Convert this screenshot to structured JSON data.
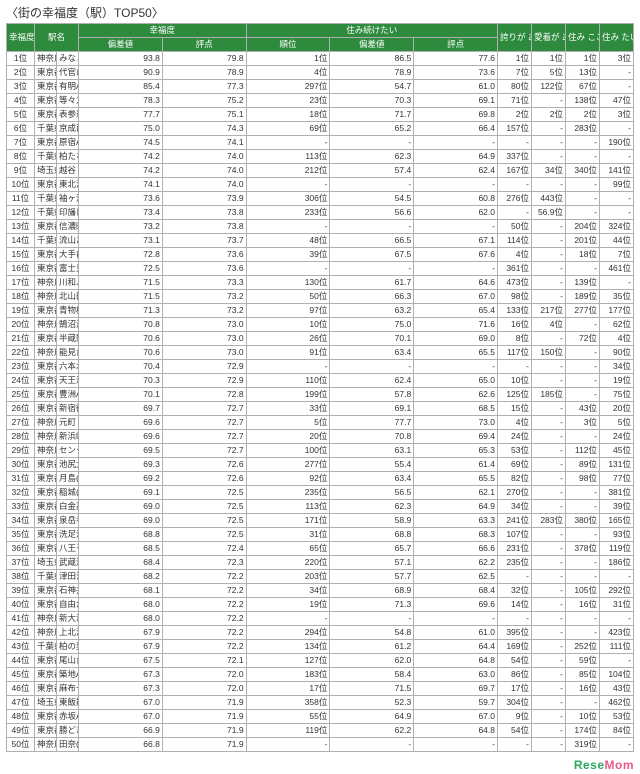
{
  "title": "〈街の幸福度（駅）TOP50〉",
  "headers": {
    "rank": "幸福度\n順位",
    "station": "駅名",
    "happy_group": "幸福度",
    "deviation": "偏差値",
    "points": "評点",
    "livecont_group": "住み続けたい",
    "order": "順位",
    "pride": "誇りが\nある",
    "attach": "愛着が\nある",
    "livefeel": "住み\nここち",
    "want": "住み\nたい"
  },
  "logo": {
    "left": "Rese",
    "right": "Mom"
  },
  "rows": [
    {
      "rank": "1位",
      "pref": "神奈川県",
      "sta": "みなとみらい(みなとみらい線)",
      "dev": "93.8",
      "pts": "79.8",
      "ord": "1位",
      "dev2": "86.5",
      "pts2": "77.6",
      "pride": "1位",
      "att": "1位",
      "live": "1位",
      "want": "3位"
    },
    {
      "rank": "2位",
      "pref": "東京都",
      "sta": "代官山(東急東横線)",
      "dev": "90.9",
      "pts": "78.9",
      "ord": "4位",
      "dev2": "78.9",
      "pts2": "73.6",
      "pride": "7位",
      "att": "5位",
      "live": "13位",
      "want": "-"
    },
    {
      "rank": "3位",
      "pref": "東京都",
      "sta": "有明A(東京ゆりかもめ)",
      "dev": "85.4",
      "pts": "77.3",
      "ord": "297位",
      "dev2": "54.7",
      "pts2": "61.0",
      "pride": "80位",
      "att": "122位",
      "live": "67位",
      "want": "-"
    },
    {
      "rank": "4位",
      "pref": "東京都",
      "sta": "等々力(東急大井町線)",
      "dev": "78.3",
      "pts": "75.2",
      "ord": "23位",
      "dev2": "70.3",
      "pts2": "69.1",
      "pride": "71位",
      "att": "-",
      "live": "138位",
      "want": "47位"
    },
    {
      "rank": "5位",
      "pref": "東京都",
      "sta": "表参道(東京メトロ銀座線)",
      "dev": "77.7",
      "pts": "75.1",
      "ord": "18位",
      "dev2": "71.7",
      "pts2": "69.8",
      "pride": "2位",
      "att": "2位",
      "live": "2位",
      "want": "3位"
    },
    {
      "rank": "6位",
      "pref": "千葉県",
      "sta": "京成西船(京成千原線)",
      "dev": "75.0",
      "pts": "74.3",
      "ord": "69位",
      "dev2": "65.2",
      "pts2": "66.4",
      "pride": "157位",
      "att": "-",
      "live": "283位",
      "want": "-"
    },
    {
      "rank": "7位",
      "pref": "東京都",
      "sta": "原宿A(JR山手線)",
      "dev": "74.5",
      "pts": "74.1",
      "ord": "-",
      "dev2": "-",
      "pts2": "-",
      "pride": "-",
      "att": "-",
      "live": "-",
      "want": "190位"
    },
    {
      "rank": "8位",
      "pref": "千葉県",
      "sta": "柏たなか(つくばエクスプレス)",
      "dev": "74.2",
      "pts": "74.0",
      "ord": "113位",
      "dev2": "62.3",
      "pts2": "64.9",
      "pride": "337位",
      "att": "-",
      "live": "-",
      "want": "-"
    },
    {
      "rank": "9位",
      "pref": "埼玉県",
      "sta": "越谷レイクタウン(JR武蔵野線)",
      "dev": "74.2",
      "pts": "74.0",
      "ord": "212位",
      "dev2": "57.4",
      "pts2": "62.4",
      "pride": "167位",
      "att": "34位",
      "live": "340位",
      "want": "141位"
    },
    {
      "rank": "10位",
      "pref": "東京都",
      "sta": "東北沢(小田急線)",
      "dev": "74.1",
      "pts": "74.0",
      "ord": "-",
      "dev2": "-",
      "pts2": "-",
      "pride": "-",
      "att": "-",
      "live": "-",
      "want": "99位"
    },
    {
      "rank": "11位",
      "pref": "千葉県",
      "sta": "袖ヶ浦(JR内房線)",
      "dev": "73.6",
      "pts": "73.9",
      "ord": "306位",
      "dev2": "54.5",
      "pts2": "60.8",
      "pride": "276位",
      "att": "443位",
      "live": "-",
      "want": "-"
    },
    {
      "rank": "12位",
      "pref": "千葉県",
      "sta": "印旛日本医大(北総・成田スカイアクセス)",
      "dev": "73.4",
      "pts": "73.8",
      "ord": "233位",
      "dev2": "56.6",
      "pts2": "62.0",
      "pride": "-",
      "att": "56.9位",
      "live": "-",
      "want": "-"
    },
    {
      "rank": "13位",
      "pref": "東京都",
      "sta": "信濃町(JR中央線)",
      "dev": "73.2",
      "pts": "73.8",
      "ord": "-",
      "dev2": "-",
      "pts2": "-",
      "pride": "50位",
      "att": "-",
      "live": "204位",
      "want": "324位"
    },
    {
      "rank": "14位",
      "pref": "千葉県",
      "sta": "流山おおたかの森(つくばエクスプレス)",
      "dev": "73.1",
      "pts": "73.7",
      "ord": "48位",
      "dev2": "66.5",
      "pts2": "67.1",
      "pride": "114位",
      "att": "-",
      "live": "201位",
      "want": "44位"
    },
    {
      "rank": "15位",
      "pref": "東京都",
      "sta": "大手前(東京メトロ南北線)",
      "dev": "72.8",
      "pts": "73.6",
      "ord": "39位",
      "dev2": "67.5",
      "pts2": "67.6",
      "pride": "4位",
      "att": "-",
      "live": "18位",
      "want": "7位"
    },
    {
      "rank": "16位",
      "pref": "東京都",
      "sta": "富士見ヶ丘(京王井の頭線)",
      "dev": "72.5",
      "pts": "73.6",
      "ord": "-",
      "dev2": "-",
      "pts2": "-",
      "pride": "361位",
      "att": "-",
      "live": "-",
      "want": "461位"
    },
    {
      "rank": "17位",
      "pref": "神奈川県",
      "sta": "川和ふれあいの丘(グリーンライン)",
      "dev": "71.5",
      "pts": "73.3",
      "ord": "130位",
      "dev2": "61.7",
      "pts2": "64.6",
      "pride": "473位",
      "att": "-",
      "live": "139位",
      "want": "-"
    },
    {
      "rank": "18位",
      "pref": "神奈川県",
      "sta": "北山田(グリーンライン)",
      "dev": "71.5",
      "pts": "73.2",
      "ord": "50位",
      "dev2": "66.3",
      "pts2": "67.0",
      "pride": "98位",
      "att": "-",
      "live": "189位",
      "want": "35位"
    },
    {
      "rank": "19位",
      "pref": "東京都",
      "sta": "青物横丁(京浜急行線)",
      "dev": "71.3",
      "pts": "73.2",
      "ord": "97位",
      "dev2": "63.2",
      "pts2": "65.4",
      "pride": "133位",
      "att": "217位",
      "live": "277位",
      "want": "177位"
    },
    {
      "rank": "20位",
      "pref": "神奈川県",
      "sta": "鵠沼海岸(小田急江ノ島線)",
      "dev": "70.8",
      "pts": "73.0",
      "ord": "10位",
      "dev2": "75.0",
      "pts2": "71.6",
      "pride": "16位",
      "att": "4位",
      "live": "-",
      "want": "62位"
    },
    {
      "rank": "21位",
      "pref": "東京都",
      "sta": "半蔵門・麹町A(東京メトロ半蔵門線)",
      "dev": "70.6",
      "pts": "73.0",
      "ord": "26位",
      "dev2": "70.1",
      "pts2": "69.0",
      "pride": "8位",
      "att": "-",
      "live": "72位",
      "want": "4位"
    },
    {
      "rank": "22位",
      "pref": "神奈川県",
      "sta": "能見台(京急本線)",
      "dev": "70.6",
      "pts": "73.0",
      "ord": "91位",
      "dev2": "63.4",
      "pts2": "65.5",
      "pride": "117位",
      "att": "150位",
      "live": "-",
      "want": "90位"
    },
    {
      "rank": "23位",
      "pref": "東京都",
      "sta": "六本木一丁目(東京メトロ南北線)",
      "dev": "70.4",
      "pts": "72.9",
      "ord": "-",
      "dev2": "-",
      "pts2": "-",
      "pride": "-",
      "att": "-",
      "live": "-",
      "want": "34位"
    },
    {
      "rank": "24位",
      "pref": "東京都",
      "sta": "天王洲アイル(りんかい線)",
      "dev": "70.3",
      "pts": "72.9",
      "ord": "110位",
      "dev2": "62.4",
      "pts2": "65.0",
      "pride": "10位",
      "att": "-",
      "live": "-",
      "want": "19位"
    },
    {
      "rank": "25位",
      "pref": "東京都",
      "sta": "豊洲A(東京メトロ有楽町線)",
      "dev": "70.1",
      "pts": "72.8",
      "ord": "199位",
      "dev2": "57.8",
      "pts2": "62.6",
      "pride": "125位",
      "att": "185位",
      "live": "-",
      "want": "75位"
    },
    {
      "rank": "26位",
      "pref": "東京都",
      "sta": "新宿御苑前(東京メトロ丸ノ内線)",
      "dev": "69.7",
      "pts": "72.7",
      "ord": "33位",
      "dev2": "69.1",
      "pts2": "68.5",
      "pride": "15位",
      "att": "-",
      "live": "43位",
      "want": "20位"
    },
    {
      "rank": "27位",
      "pref": "神奈川県",
      "sta": "元町・中華街(みなとみらい線)",
      "dev": "69.6",
      "pts": "72.7",
      "ord": "5位",
      "dev2": "77.7",
      "pts2": "73.0",
      "pride": "4位",
      "att": "-",
      "live": "3位",
      "want": "5位"
    },
    {
      "rank": "28位",
      "pref": "神奈川県",
      "sta": "新浜崎(JR京葉線)",
      "dev": "69.6",
      "pts": "72.7",
      "ord": "20位",
      "dev2": "70.8",
      "pts2": "69.4",
      "pride": "24位",
      "att": "-",
      "live": "-",
      "want": "24位"
    },
    {
      "rank": "29位",
      "pref": "神奈川県",
      "sta": "センター南(ブルーライン)",
      "dev": "69.5",
      "pts": "72.7",
      "ord": "100位",
      "dev2": "63.1",
      "pts2": "65.3",
      "pride": "53位",
      "att": "-",
      "live": "112位",
      "want": "45位"
    },
    {
      "rank": "30位",
      "pref": "東京都",
      "sta": "池尻大橋(東急田園都市線)",
      "dev": "69.3",
      "pts": "72.6",
      "ord": "277位",
      "dev2": "55.4",
      "pts2": "61.4",
      "pride": "69位",
      "att": "-",
      "live": "89位",
      "want": "131位"
    },
    {
      "rank": "31位",
      "pref": "東京都",
      "sta": "月島(東京メトロ有楽町線)",
      "dev": "69.2",
      "pts": "72.6",
      "ord": "92位",
      "dev2": "63.4",
      "pts2": "65.5",
      "pride": "82位",
      "att": "-",
      "live": "98位",
      "want": "77位"
    },
    {
      "rank": "32位",
      "pref": "東京都",
      "sta": "稲城(京王相模原線)",
      "dev": "69.1",
      "pts": "72.5",
      "ord": "235位",
      "dev2": "56.5",
      "pts2": "62.1",
      "pride": "270位",
      "att": "-",
      "live": "-",
      "want": "381位"
    },
    {
      "rank": "33位",
      "pref": "東京都",
      "sta": "白金高輪(東京メトロ南北線)",
      "dev": "69.0",
      "pts": "72.5",
      "ord": "113位",
      "dev2": "62.3",
      "pts2": "64.9",
      "pride": "34位",
      "att": "-",
      "live": "-",
      "want": "39位"
    },
    {
      "rank": "34位",
      "pref": "東京都",
      "sta": "泉岳寺(都営浅草・京急浦賀線)",
      "dev": "69.0",
      "pts": "72.5",
      "ord": "171位",
      "dev2": "58.9",
      "pts2": "63.3",
      "pride": "241位",
      "att": "283位",
      "live": "380位",
      "want": "165位"
    },
    {
      "rank": "35位",
      "pref": "東京都",
      "sta": "洗足池(東急池上線)",
      "dev": "68.8",
      "pts": "72.5",
      "ord": "31位",
      "dev2": "68.8",
      "pts2": "68.3",
      "pride": "107位",
      "att": "-",
      "live": "-",
      "want": "93位"
    },
    {
      "rank": "36位",
      "pref": "東京都",
      "sta": "八王子みなみ野(JR横浜線)",
      "dev": "68.5",
      "pts": "72.4",
      "ord": "65位",
      "dev2": "65.7",
      "pts2": "66.6",
      "pride": "231位",
      "att": "-",
      "live": "378位",
      "want": "119位"
    },
    {
      "rank": "37位",
      "pref": "埼玉県",
      "sta": "武蔵浦和(JR武蔵野線)",
      "dev": "68.4",
      "pts": "72.3",
      "ord": "220位",
      "dev2": "57.1",
      "pts2": "62.2",
      "pride": "235位",
      "att": "-",
      "live": "-",
      "want": "186位"
    },
    {
      "rank": "38位",
      "pref": "千葉県",
      "sta": "津田沼(JR京葉線)",
      "dev": "68.2",
      "pts": "72.2",
      "ord": "203位",
      "dev2": "57.7",
      "pts2": "62.5",
      "pride": "-",
      "att": "-",
      "live": "-",
      "want": "-"
    },
    {
      "rank": "39位",
      "pref": "東京都",
      "sta": "石神井公園(西武池袋線)",
      "dev": "68.1",
      "pts": "72.2",
      "ord": "34位",
      "dev2": "68.9",
      "pts2": "68.4",
      "pride": "32位",
      "att": "-",
      "live": "105位",
      "want": "292位"
    },
    {
      "rank": "40位",
      "pref": "東京都",
      "sta": "自由が丘(東急東横線)",
      "dev": "68.0",
      "pts": "72.2",
      "ord": "19位",
      "dev2": "71.3",
      "pts2": "69.6",
      "pride": "14位",
      "att": "-",
      "live": "16位",
      "want": "31位"
    },
    {
      "rank": "41位",
      "pref": "神奈川県",
      "sta": "新大津(京急久里浜線)",
      "dev": "68.0",
      "pts": "72.2",
      "ord": "-",
      "dev2": "-",
      "pts2": "-",
      "pride": "-",
      "att": "-",
      "live": "-",
      "want": "-"
    },
    {
      "rank": "42位",
      "pref": "神奈川県",
      "sta": "上北沢(京王線)",
      "dev": "67.9",
      "pts": "72.2",
      "ord": "294位",
      "dev2": "54.8",
      "pts2": "61.0",
      "pride": "395位",
      "att": "-",
      "live": "-",
      "want": "423位"
    },
    {
      "rank": "43位",
      "pref": "千葉県",
      "sta": "柏の葉キャンパス(つくばエクスプレス)",
      "dev": "67.9",
      "pts": "72.2",
      "ord": "134位",
      "dev2": "61.2",
      "pts2": "64.4",
      "pride": "169位",
      "att": "-",
      "live": "252位",
      "want": "111位"
    },
    {
      "rank": "44位",
      "pref": "東京都",
      "sta": "尾山台(東急大井町線)",
      "dev": "67.5",
      "pts": "72.1",
      "ord": "127位",
      "dev2": "62.0",
      "pts2": "64.8",
      "pride": "54位",
      "att": "-",
      "live": "59位",
      "want": "-"
    },
    {
      "rank": "45位",
      "pref": "東京都",
      "sta": "築地A(東京メトロ日比谷線)",
      "dev": "67.3",
      "pts": "72.0",
      "ord": "183位",
      "dev2": "58.4",
      "pts2": "63.0",
      "pride": "86位",
      "att": "-",
      "live": "85位",
      "want": "104位"
    },
    {
      "rank": "46位",
      "pref": "東京都",
      "sta": "麻布十番(東京メトロ南北線)",
      "dev": "67.3",
      "pts": "72.0",
      "ord": "17位",
      "dev2": "71.5",
      "pts2": "69.7",
      "pride": "17位",
      "att": "-",
      "live": "16位",
      "want": "43位"
    },
    {
      "rank": "47位",
      "pref": "埼玉県",
      "sta": "東飯能(JR八高線)",
      "dev": "67.0",
      "pts": "71.9",
      "ord": "358位",
      "dev2": "52.3",
      "pts2": "59.7",
      "pride": "304位",
      "att": "-",
      "live": "-",
      "want": "462位"
    },
    {
      "rank": "48位",
      "pref": "東京都",
      "sta": "赤坂A(東京メトロ千代田線)",
      "dev": "67.0",
      "pts": "71.9",
      "ord": "55位",
      "dev2": "64.9",
      "pts2": "67.0",
      "pride": "9位",
      "att": "-",
      "live": "10位",
      "want": "53位"
    },
    {
      "rank": "49位",
      "pref": "東京都",
      "sta": "勝どき(都営大江戸線)",
      "dev": "66.9",
      "pts": "71.9",
      "ord": "119位",
      "dev2": "62.2",
      "pts2": "64.8",
      "pride": "54位",
      "att": "-",
      "live": "174位",
      "want": "84位"
    },
    {
      "rank": "50位",
      "pref": "神奈川県",
      "sta": "田奈(東急田園都市線)",
      "dev": "66.8",
      "pts": "71.9",
      "ord": "-",
      "dev2": "-",
      "pts2": "-",
      "pride": "-",
      "att": "-",
      "live": "319位",
      "want": "-"
    }
  ]
}
